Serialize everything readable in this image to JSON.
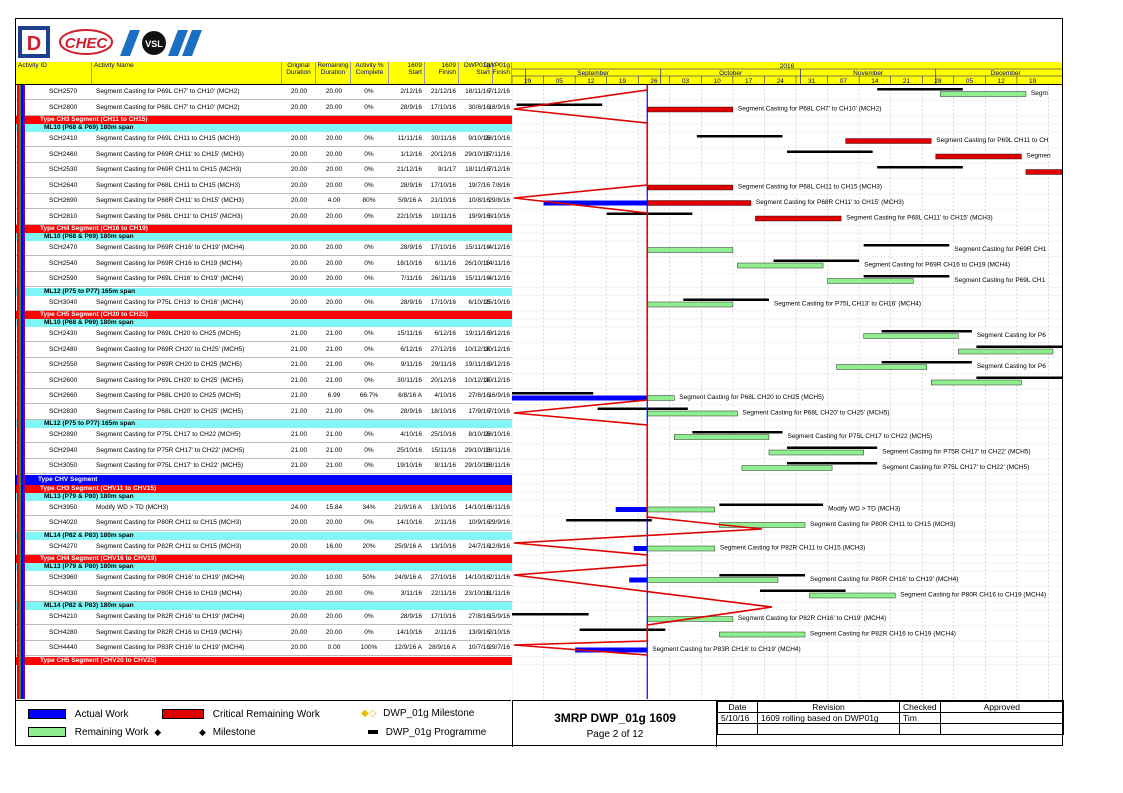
{
  "columns": {
    "activity_id": "Activity ID",
    "activity_name": "Activity Name",
    "orig_dur": [
      "Original",
      "Duration"
    ],
    "rem_dur": [
      "Remaining",
      "Duration"
    ],
    "pct": [
      "Activity %",
      "Complete"
    ],
    "start1609": [
      "1609",
      "Start"
    ],
    "finish1609": [
      "1609",
      "Finish"
    ],
    "dwp_start": [
      "DWP01g",
      "Start"
    ],
    "dwp_finish": [
      "DWP01g",
      "Finish"
    ]
  },
  "timescale": {
    "year": "2016",
    "months": [
      "September",
      "October",
      "November",
      "December"
    ],
    "days": [
      "29",
      "05",
      "12",
      "19",
      "26",
      "03",
      "10",
      "17",
      "24",
      "31",
      "07",
      "14",
      "21",
      "28",
      "05",
      "12",
      "19"
    ]
  },
  "rows": [
    {
      "t": "act",
      "id": "SCH2570",
      "name": "Segment Casting for P69L CH7' to CH10' (MCH2)",
      "od": "20.00",
      "rd": "20.00",
      "pc": "0%",
      "s": "2/12/16",
      "f": "21/12/16",
      "ds": "18/11/16",
      "df": "7/12/16"
    },
    {
      "t": "act",
      "id": "SCH2800",
      "name": "Segment Casting for P68L CH7' to CH10' (MCH2)",
      "od": "20.00",
      "rd": "20.00",
      "pc": "0%",
      "s": "28/9/16",
      "f": "17/10/16",
      "ds": "30/8/16",
      "df": "18/9/16"
    },
    {
      "t": "cat",
      "label": "Type CH3 Segment (CH11 to CH15)"
    },
    {
      "t": "sub",
      "label": "ML10 (P68 & P69) 180m span"
    },
    {
      "t": "act",
      "id": "SCH2410",
      "name": "Segment Casting for P69L CH11 to CH15 (MCH3)",
      "od": "20.00",
      "rd": "20.00",
      "pc": "0%",
      "s": "11/11/16",
      "f": "30/11/16",
      "ds": "9/10/16",
      "df": "28/10/16"
    },
    {
      "t": "act",
      "id": "SCH2460",
      "name": "Segment Casting for P69R CH11' to CH15' (MCH3)",
      "od": "20.00",
      "rd": "20.00",
      "pc": "0%",
      "s": "1/12/16",
      "f": "20/12/16",
      "ds": "29/10/16",
      "df": "17/11/16"
    },
    {
      "t": "act",
      "id": "SCH2530",
      "name": "Segment Casting for P69R CH11 to CH15 (MCH3)",
      "od": "20.00",
      "rd": "20.00",
      "pc": "0%",
      "s": "21/12/16",
      "f": "9/1/17",
      "ds": "18/11/16",
      "df": "7/12/16"
    },
    {
      "t": "act",
      "id": "SCH2640",
      "name": "Segment Casting for P68L CH11 to CH15 (MCH3)",
      "od": "20.00",
      "rd": "20.00",
      "pc": "0%",
      "s": "28/9/16",
      "f": "17/10/16",
      "ds": "19/7/16",
      "df": "7/8/16"
    },
    {
      "t": "act",
      "id": "SCH2690",
      "name": "Segment Casting for P68R CH11' to CH15' (MCH3)",
      "od": "20.00",
      "rd": "4.00",
      "pc": "80%",
      "s": "5/9/16 A",
      "f": "21/10/16",
      "ds": "10/8/16",
      "df": "29/8/16"
    },
    {
      "t": "act",
      "id": "SCH2810",
      "name": "Segment Casting for P68L CH11' to CH15' (MCH3)",
      "od": "20.00",
      "rd": "20.00",
      "pc": "0%",
      "s": "22/10/16",
      "f": "10/11/16",
      "ds": "19/9/16",
      "df": "8/10/16"
    },
    {
      "t": "cat",
      "label": "Type CH4 Segment (CH16 to CH19)"
    },
    {
      "t": "sub",
      "label": "ML10 (P68 & P69) 180m span"
    },
    {
      "t": "act",
      "id": "SCH2470",
      "name": "Segment Casting for P69R CH16' to CH19' (MCH4)",
      "od": "20.00",
      "rd": "20.00",
      "pc": "0%",
      "s": "28/9/16",
      "f": "17/10/16",
      "ds": "15/11/16",
      "df": "4/12/16"
    },
    {
      "t": "act",
      "id": "SCH2540",
      "name": "Segment Casting for P69R CH16 to CH19 (MCH4)",
      "od": "20.00",
      "rd": "20.00",
      "pc": "0%",
      "s": "18/10/16",
      "f": "6/11/16",
      "ds": "26/10/16",
      "df": "14/11/16"
    },
    {
      "t": "act",
      "id": "SCH2590",
      "name": "Segment Casting for P69L CH16' to CH19' (MCH4)",
      "od": "20.00",
      "rd": "20.00",
      "pc": "0%",
      "s": "7/11/16",
      "f": "26/11/16",
      "ds": "15/11/16",
      "df": "4/12/16"
    },
    {
      "t": "sub",
      "label": "ML12 (P75 to P77) 165m span"
    },
    {
      "t": "act",
      "id": "SCH3040",
      "name": "Segment Casting for P75L CH13' to CH16' (MCH4)",
      "od": "20.00",
      "rd": "20.00",
      "pc": "0%",
      "s": "28/9/16",
      "f": "17/10/16",
      "ds": "6/10/16",
      "df": "25/10/16"
    },
    {
      "t": "cat",
      "label": "Type CH5 Segment (CH20 to CH25)"
    },
    {
      "t": "sub",
      "label": "ML10 (P68 & P69) 180m span"
    },
    {
      "t": "act",
      "id": "SCH2430",
      "name": "Segment Casting for P69L CH20 to CH25 (MCH5)",
      "od": "21.00",
      "rd": "21.00",
      "pc": "0%",
      "s": "15/11/16",
      "f": "6/12/16",
      "ds": "19/11/16",
      "df": "9/12/16"
    },
    {
      "t": "act",
      "id": "SCH2480",
      "name": "Segment Casting for P69R CH20' to CH25' (MCH5)",
      "od": "21.00",
      "rd": "21.00",
      "pc": "0%",
      "s": "6/12/16",
      "f": "27/12/16",
      "ds": "10/12/16",
      "df": "30/12/16"
    },
    {
      "t": "act",
      "id": "SCH2550",
      "name": "Segment Casting for P69R CH20 to CH25 (MCH5)",
      "od": "21.00",
      "rd": "21.00",
      "pc": "0%",
      "s": "9/11/16",
      "f": "29/11/16",
      "ds": "19/11/16",
      "df": "9/12/16"
    },
    {
      "t": "act",
      "id": "SCH2600",
      "name": "Segment Casting for P69L CH20' to CH25' (MCH5)",
      "od": "21.00",
      "rd": "21.00",
      "pc": "0%",
      "s": "30/11/16",
      "f": "20/12/16",
      "ds": "10/12/16",
      "df": "30/12/16"
    },
    {
      "t": "act",
      "id": "SCH2660",
      "name": "Segment Casting for P68L CH20 to CH25 (MCH5)",
      "od": "21.00",
      "rd": "6.99",
      "pc": "66.7%",
      "s": "6/8/16 A",
      "f": "4/10/16",
      "ds": "27/8/16",
      "df": "16/9/16"
    },
    {
      "t": "act",
      "id": "SCH2830",
      "name": "Segment Casting for P68L CH20' to CH25' (MCH5)",
      "od": "21.00",
      "rd": "21.00",
      "pc": "0%",
      "s": "28/9/16",
      "f": "18/10/16",
      "ds": "17/9/16",
      "df": "7/10/16"
    },
    {
      "t": "sub",
      "label": "ML12 (P75 to P77) 165m span"
    },
    {
      "t": "act",
      "id": "SCH2890",
      "name": "Segment Casting for P75L CH17 to CH22 (MCH5)",
      "od": "21.00",
      "rd": "21.00",
      "pc": "0%",
      "s": "4/10/16",
      "f": "25/10/16",
      "ds": "8/10/16",
      "df": "28/10/16"
    },
    {
      "t": "act",
      "id": "SCH2940",
      "name": "Segment Casting for P75R CH17' to CH22' (MCH5)",
      "od": "21.00",
      "rd": "21.00",
      "pc": "0%",
      "s": "25/10/16",
      "f": "15/11/16",
      "ds": "29/10/16",
      "df": "18/11/16"
    },
    {
      "t": "act",
      "id": "SCH3050",
      "name": "Segment Casting for P75L CH17' to CH22' (MCH5)",
      "od": "21.00",
      "rd": "21.00",
      "pc": "0%",
      "s": "19/10/16",
      "f": "8/11/16",
      "ds": "29/10/16",
      "df": "18/11/16"
    },
    {
      "t": "big",
      "label": "Type CHV Segment"
    },
    {
      "t": "cat",
      "label": "Type CH3 Segment (CHV11 to CHV15)"
    },
    {
      "t": "sub",
      "label": "ML13 (P79 & P80) 180m span"
    },
    {
      "t": "act",
      "id": "SCH3950",
      "name": "Modify WD > TD (MCH3)",
      "od": "24.00",
      "rd": "15.84",
      "pc": "34%",
      "s": "21/9/16 A",
      "f": "13/10/16",
      "ds": "14/10/16",
      "df": "6/11/16"
    },
    {
      "t": "act",
      "id": "SCH4020",
      "name": "Segment Casting for P80R CH11 to CH15 (MCH3)",
      "od": "20.00",
      "rd": "20.00",
      "pc": "0%",
      "s": "14/10/16",
      "f": "2/11/16",
      "ds": "10/9/16",
      "df": "29/9/16"
    },
    {
      "t": "sub",
      "label": "ML14 (P82 & P83) 180m span"
    },
    {
      "t": "act",
      "id": "SCH4270",
      "name": "Segment Casting for P82R CH11 to CH15 (MCH3)",
      "od": "20.00",
      "rd": "16.00",
      "pc": "20%",
      "s": "25/9/16 A",
      "f": "13/10/16",
      "ds": "24/7/16",
      "df": "12/8/16"
    },
    {
      "t": "cat",
      "label": "Type CH4 Segment (CHV16 to CHV19)"
    },
    {
      "t": "sub",
      "label": "ML13 (P79 & P80) 180m span"
    },
    {
      "t": "act",
      "id": "SCH3960",
      "name": "Segment Casting for P80R CH16' to CH19' (MCH4)",
      "od": "20.00",
      "rd": "10.00",
      "pc": "50%",
      "s": "24/9/16 A",
      "f": "27/10/16",
      "ds": "14/10/16",
      "df": "2/11/16"
    },
    {
      "t": "act",
      "id": "SCH4030",
      "name": "Segment Casting for P80R CH16 to CH19 (MCH4)",
      "od": "20.00",
      "rd": "20.00",
      "pc": "0%",
      "s": "3/11/16",
      "f": "22/11/16",
      "ds": "23/10/16",
      "df": "11/11/16"
    },
    {
      "t": "sub",
      "label": "ML14 (P82 & P83) 180m span"
    },
    {
      "t": "act",
      "id": "SCH4210",
      "name": "Segment Casting for P82R CH16' to CH19' (MCH4)",
      "od": "20.00",
      "rd": "20.00",
      "pc": "0%",
      "s": "28/9/16",
      "f": "17/10/16",
      "ds": "27/8/16",
      "df": "15/9/16"
    },
    {
      "t": "act",
      "id": "SCH4280",
      "name": "Segment Casting for P82R CH16 to CH19 (MCH4)",
      "od": "20.00",
      "rd": "20.00",
      "pc": "0%",
      "s": "14/10/16",
      "f": "2/11/16",
      "ds": "13/9/16",
      "df": "2/10/16"
    },
    {
      "t": "act",
      "id": "SCH4440",
      "name": "Segment Casting for P83R CH16' to CH19' (MCH4)",
      "od": "20.00",
      "rd": "0.00",
      "pc": "100%",
      "s": "12/9/16 A",
      "f": "28/9/16 A",
      "ds": "10/7/16",
      "df": "29/7/16"
    },
    {
      "t": "cat",
      "label": "Type CH5 Segment (CHV20 to CHV25)"
    }
  ],
  "gantt_labels": [
    {
      "row": 0,
      "text": "Segm",
      "mark": "label-2570"
    },
    {
      "row": 1,
      "text": "Segment Casting for P68L CH7' to CH10' (MCH2)"
    },
    {
      "row": 4,
      "text": "Segment Casting for P69L CH11 to CH"
    },
    {
      "row": 5,
      "text": "Segmen"
    },
    {
      "row": 7,
      "text": "Segment Casting for P68L CH11 to CH15 (MCH3)"
    },
    {
      "row": 8,
      "text": "Segment Casting for P68R CH11' to CH15' (MCH3)"
    },
    {
      "row": 9,
      "text": "Segment Casting for P68L CH11' to CH15' (MCH3)"
    },
    {
      "row": 12,
      "text": "Segment Casting for P69R CH1"
    },
    {
      "row": 13,
      "text": "Segment Casting for P69R CH16 to CH19 (MCH4)"
    },
    {
      "row": 14,
      "text": "Segment Casting for P69L CH1"
    },
    {
      "row": 16,
      "text": "Segment Casting for P75L CH13' to CH16' (MCH4)"
    },
    {
      "row": 19,
      "text": "Segment Casting for P6"
    },
    {
      "row": 21,
      "text": "Segment Casting for P6"
    },
    {
      "row": 23,
      "text": "Segment Casting for P68L CH20 to CH25 (MCH5)"
    },
    {
      "row": 24,
      "text": "Segment Casting for P68L CH20' to CH25' (MCH5)"
    },
    {
      "row": 26,
      "text": "Segment Casting for P75L CH17 to CH22 (MCH5)"
    },
    {
      "row": 27,
      "text": "Segment Casting for P75R CH17' to CH22' (MCH5)"
    },
    {
      "row": 28,
      "text": "Segment Casting for P75L CH17' to CH22' (MCH5)"
    },
    {
      "row": 32,
      "text": "Modify WD > TD (MCH3)"
    },
    {
      "row": 33,
      "text": "Segment Casting for P80R CH11 to CH15 (MCH3)"
    },
    {
      "row": 35,
      "text": "Segment Casting for P82R CH11 to CH15 (MCH3)"
    },
    {
      "row": 38,
      "text": "Segment Casting for P80R CH16' to CH19' (MCH4)"
    },
    {
      "row": 39,
      "text": "Segment Casting for P80R CH16 to CH19 (MCH4)"
    },
    {
      "row": 41,
      "text": "Segment Casting for P82R CH16' to CH19' (MCH4)"
    },
    {
      "row": 42,
      "text": "Segment Casting for P82R CH16 to CH19 (MCH4)"
    },
    {
      "row": 43,
      "text": "Segment Casting for P83R CH16' to CH19' (MCH4)"
    }
  ],
  "legend": {
    "actual": "Actual Work",
    "critical": "Critical Remaining Work",
    "dwp_milestone": "DWP_01g Milestone",
    "remaining": "Remaining Work",
    "milestone": "Milestone",
    "dwp_programme": "DWP_01g Programme"
  },
  "title_block": {
    "title": "3MRP DWP_01g 1609",
    "page": "Page 2 of 12"
  },
  "revision": {
    "headers": [
      "Date",
      "Revision",
      "Checked",
      "Approved"
    ],
    "row": [
      "5/10/16",
      "1609 rolling based on DWP01g",
      "Tim",
      ""
    ]
  },
  "colors": {
    "actual": "#0000ff",
    "critical": "#e00000",
    "remaining": "#90ee90",
    "programme": "#000000",
    "header": "#ffff00",
    "subgroup": "#7ff7f7"
  },
  "icons": [
    "d-logo",
    "chec-logo",
    "vsl-logo"
  ]
}
